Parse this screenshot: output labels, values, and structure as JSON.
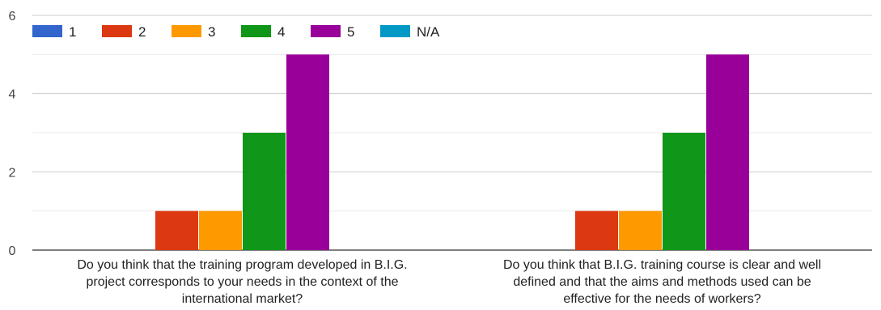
{
  "chart_data": {
    "type": "bar",
    "title": "",
    "xlabel": "",
    "ylabel": "",
    "ylim": [
      0,
      6
    ],
    "yticks": [
      0,
      2,
      4,
      6
    ],
    "grid": true,
    "legend_position": "top-left",
    "categories": [
      [
        "Do you think that the training program developed in B.I.G.",
        "project corresponds to your needs in the context of the",
        "international market?"
      ],
      [
        "Do you think that B.I.G. training course is clear and well",
        "defined and that the aims and methods used can be",
        "effective for the needs of workers?"
      ]
    ],
    "series": [
      {
        "name": "1",
        "color": "#3366cc",
        "values": [
          0,
          0
        ]
      },
      {
        "name": "2",
        "color": "#dc3912",
        "values": [
          1,
          1
        ]
      },
      {
        "name": "3",
        "color": "#ff9900",
        "values": [
          1,
          1
        ]
      },
      {
        "name": "4",
        "color": "#109618",
        "values": [
          3,
          3
        ]
      },
      {
        "name": "5",
        "color": "#990099",
        "values": [
          5,
          5
        ]
      },
      {
        "name": "N/A",
        "color": "#0099c6",
        "values": [
          0,
          0
        ]
      }
    ]
  }
}
